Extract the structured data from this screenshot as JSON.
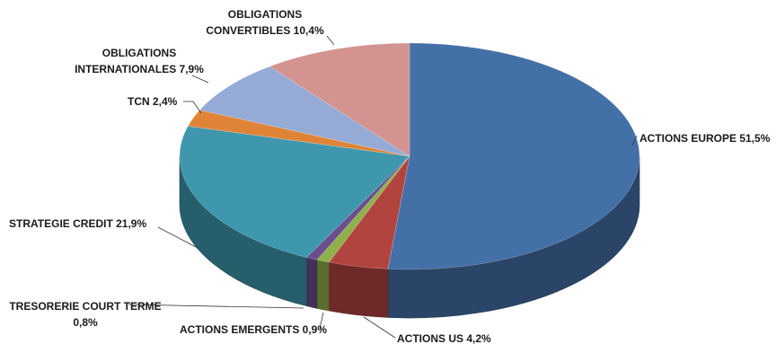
{
  "chart_data": {
    "type": "pie",
    "title": "",
    "slices": [
      {
        "label": "ACTIONS EUROPE 51,5%",
        "value": 51.5,
        "color": "#4470a8"
      },
      {
        "label": "ACTIONS US 4,2%",
        "value": 4.2,
        "color": "#b24440"
      },
      {
        "label": "ACTIONS EMERGENTS 0,9%",
        "value": 0.9,
        "color": "#8fb04a"
      },
      {
        "label": "TRESORERIE COURT TERME 0,8%",
        "value": 0.8,
        "color": "#6a4f8c"
      },
      {
        "label": "STRATEGIE CREDIT 21,9%",
        "value": 21.9,
        "color": "#3f97ad"
      },
      {
        "label": "TCN 2,4%",
        "value": 2.4,
        "color": "#df8437"
      },
      {
        "label": "OBLIGATIONS INTERNATIONALES 7,9%",
        "value": 7.9,
        "color": "#95abd5"
      },
      {
        "label": "OBLIGATIONS CONVERTIBLES 10,4%",
        "value": 10.4,
        "color": "#d39391"
      }
    ]
  }
}
